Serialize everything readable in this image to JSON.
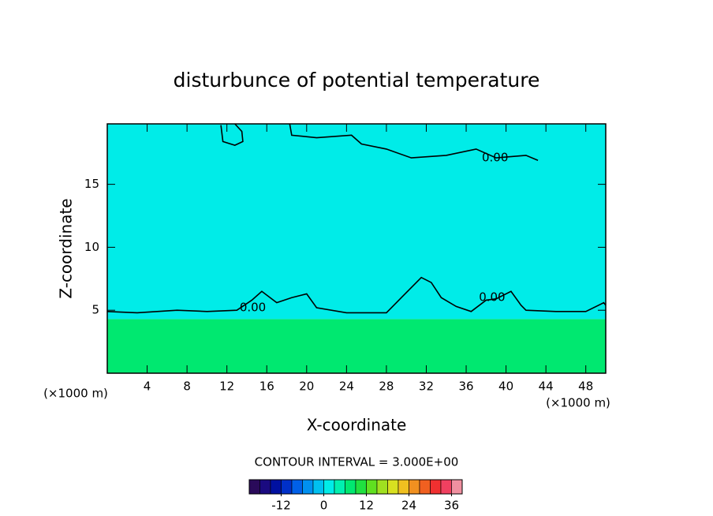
{
  "chart_data": {
    "type": "contour",
    "title": "disturbunce of potential temperature",
    "x_label": "X-coordinate",
    "y_label": "Z-coordinate",
    "x_unit": "(×1000 m)",
    "y_unit": "(×1000 m)",
    "xlim": [
      0,
      50
    ],
    "ylim": [
      0,
      19.8
    ],
    "xticks": [
      4,
      8,
      12,
      16,
      20,
      24,
      28,
      32,
      36,
      40,
      44,
      48
    ],
    "yticks": [
      5,
      10,
      15
    ],
    "layers": [
      {
        "bottom": 0,
        "top": 4.3,
        "value": 6
      },
      {
        "bottom": 4.3,
        "top": 19.8,
        "value": 0
      }
    ],
    "contours": [
      {
        "level": 0,
        "x": [
          0,
          3,
          7,
          10,
          13,
          14.5,
          15.5,
          17,
          18.5,
          20,
          21,
          24,
          28,
          29.5,
          30.5,
          31.5,
          32.5,
          33.5,
          35,
          36.5,
          38,
          39,
          40.5,
          41.5,
          42,
          45,
          48,
          49.8,
          50
        ],
        "y": [
          4.9,
          4.8,
          5,
          4.9,
          5,
          5.8,
          6.5,
          5.6,
          6,
          6.3,
          5.2,
          4.8,
          4.8,
          6,
          6.8,
          7.6,
          7.2,
          6,
          5.3,
          4.9,
          5.8,
          5.9,
          6.5,
          5.4,
          5,
          4.9,
          4.9,
          5.6,
          5.4
        ]
      },
      {
        "level": 0,
        "x": [
          18.3,
          18.5,
          21,
          24.5,
          25.5,
          28,
          30.5,
          34,
          37,
          39,
          42,
          43.2
        ],
        "y": [
          19.8,
          18.9,
          18.7,
          18.9,
          18.2,
          17.8,
          17.1,
          17.3,
          17.8,
          17.1,
          17.3,
          16.9
        ]
      },
      {
        "level": 0,
        "x": [
          11.4,
          11.6,
          12.8,
          13.6,
          13.5,
          12.8
        ],
        "y": [
          19.7,
          18.4,
          18.1,
          18.4,
          19.2,
          19.8
        ]
      }
    ],
    "contour_labels": [
      {
        "text": "0.00",
        "x": 38.9,
        "y": 17.1
      },
      {
        "text": "0.00",
        "x": 14.6,
        "y": 5.2
      },
      {
        "text": "0.00",
        "x": 38.6,
        "y": 6.0
      }
    ],
    "contour_interval_text": "CONTOUR INTERVAL = 3.000E+00",
    "colorbar": {
      "lim": [
        -21,
        39
      ],
      "interval": 3,
      "ticks": [
        -12,
        0,
        12,
        24,
        36
      ],
      "colors": [
        "#2a0a5a",
        "#1a0a80",
        "#0010a0",
        "#0030c8",
        "#0060e8",
        "#0090f0",
        "#00c0f0",
        "#00ece8",
        "#00f0b0",
        "#00e870",
        "#20e040",
        "#60e020",
        "#a0e020",
        "#d8e020",
        "#f0c020",
        "#f09020",
        "#f06020",
        "#f03030",
        "#f04060",
        "#f090a0"
      ]
    }
  }
}
